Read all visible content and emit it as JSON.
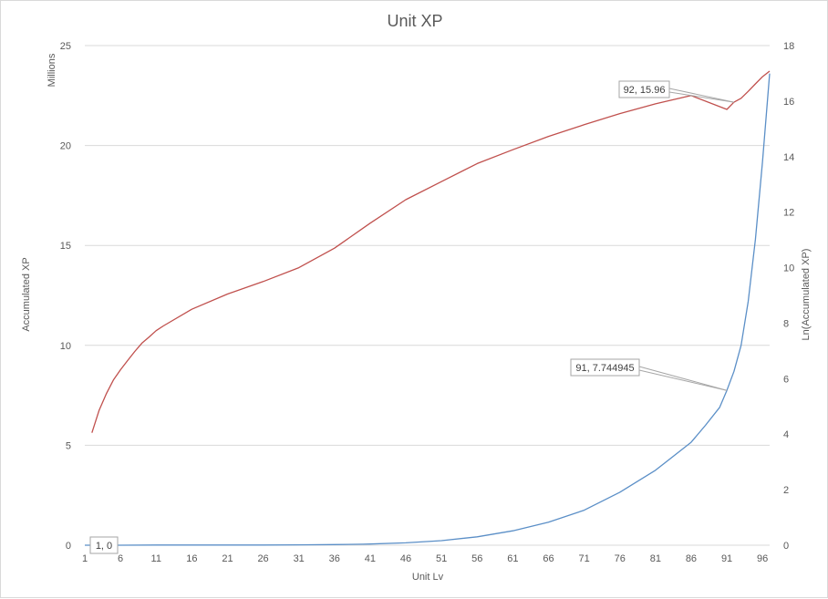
{
  "chart_data": {
    "type": "line",
    "title": "Unit XP",
    "xlabel": "Unit Lv",
    "ylabel": "Accumulated XP",
    "y2label": "Ln(Accumulated XP)",
    "y_units_label": "Millions",
    "grid": true,
    "xlim": [
      1,
      97
    ],
    "ylim": [
      0,
      25
    ],
    "y2lim": [
      0,
      18
    ],
    "x_ticks": [
      "1",
      "6",
      "11",
      "16",
      "21",
      "26",
      "31",
      "36",
      "41",
      "46",
      "51",
      "56",
      "61",
      "66",
      "71",
      "76",
      "81",
      "86",
      "91",
      "96"
    ],
    "y_ticks": [
      "0",
      "5",
      "10",
      "15",
      "20",
      "25"
    ],
    "y2_ticks": [
      "0",
      "2",
      "4",
      "6",
      "8",
      "10",
      "12",
      "14",
      "16",
      "18"
    ],
    "series": [
      {
        "axis": "left",
        "color": "#5b8fc7",
        "x": [
          1,
          6,
          11,
          16,
          21,
          26,
          31,
          36,
          40,
          41,
          46,
          51,
          56,
          61,
          66,
          71,
          76,
          81,
          86,
          88,
          90,
          91,
          92,
          93,
          94,
          95,
          96,
          97
        ],
        "y": [
          0,
          0,
          0.01,
          0.01,
          0.01,
          0.01,
          0.02,
          0.03,
          0.05,
          0.06,
          0.12,
          0.23,
          0.42,
          0.72,
          1.15,
          1.75,
          2.65,
          3.75,
          5.15,
          6.0,
          6.9,
          7.744945,
          8.7,
          10.0,
          12.2,
          15.3,
          19.2,
          23.6
        ]
      },
      {
        "axis": "right",
        "color": "#c0504d",
        "x": [
          2,
          3,
          4,
          5,
          6,
          7,
          8,
          9,
          10,
          11,
          12,
          16,
          21,
          26,
          31,
          36,
          41,
          46,
          51,
          56,
          61,
          66,
          71,
          76,
          81,
          86,
          91,
          92,
          93,
          94,
          95,
          96,
          97
        ],
        "y": [
          4.05,
          4.85,
          5.45,
          5.95,
          6.32,
          6.65,
          6.98,
          7.28,
          7.5,
          7.73,
          7.9,
          8.5,
          9.05,
          9.5,
          10.0,
          10.7,
          11.6,
          12.45,
          13.1,
          13.75,
          14.25,
          14.73,
          15.15,
          15.55,
          15.9,
          16.2,
          15.7,
          15.96,
          16.1,
          16.35,
          16.62,
          16.88,
          17.08
        ]
      }
    ],
    "annotations": [
      {
        "label": "1, 0"
      },
      {
        "label": "91, 7.744945"
      },
      {
        "label": "92, 15.96"
      }
    ]
  }
}
